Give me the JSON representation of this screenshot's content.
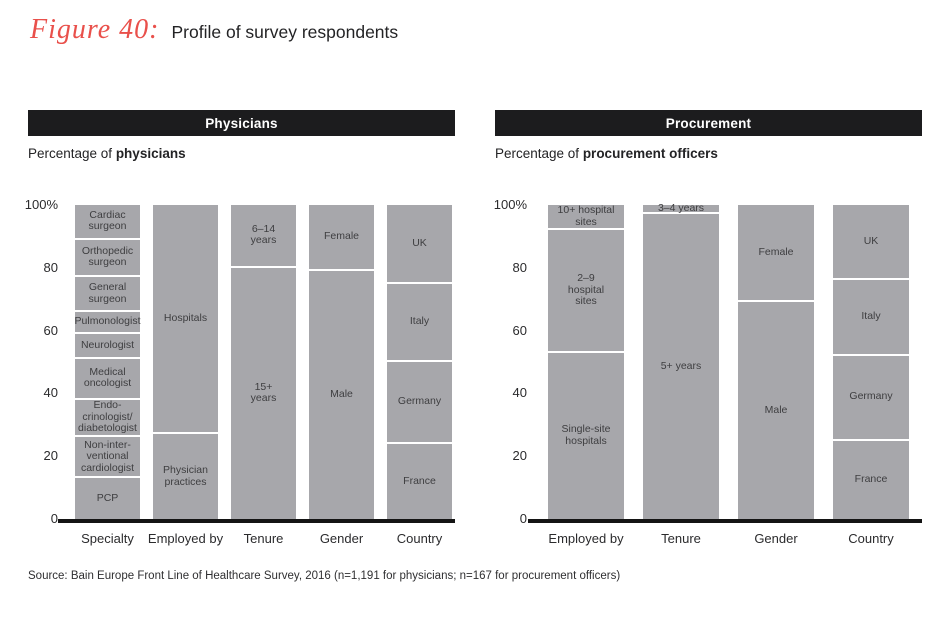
{
  "figure": {
    "label": "Figure 40:",
    "title": "Profile of survey respondents"
  },
  "colors": {
    "accent_red": "#e9504b",
    "bar_gray": "#a7a7ab",
    "header_bg": "#1c1c1e",
    "baseline_black": "#141414"
  },
  "source": "Source: Bain Europe Front Line of Healthcare Survey, 2016 (n=1,191 for physicians; n=167 for procurement officers)",
  "chart_data": [
    {
      "type": "bar",
      "stacked": true,
      "panel_title": "Physicians",
      "subtitle": {
        "prefix": "Percentage of ",
        "bold": "physicians"
      },
      "ylim": [
        0,
        100
      ],
      "grid": false,
      "legend": "none",
      "segments_order": "bottom-to-top",
      "yticks": [
        {
          "value": 100,
          "label": "100%"
        },
        {
          "value": 80,
          "label": "80"
        },
        {
          "value": 60,
          "label": "60"
        },
        {
          "value": 40,
          "label": "40"
        },
        {
          "value": 20,
          "label": "20"
        },
        {
          "value": 0,
          "label": "0"
        }
      ],
      "categories": [
        "Specialty",
        "Employed by",
        "Tenure",
        "Gender",
        "Country"
      ],
      "bars": [
        {
          "category": "Specialty",
          "segments": [
            {
              "label": "PCP",
              "value": 13
            },
            {
              "label": "Non-inter-\nventional\ncardiologist",
              "value": 13
            },
            {
              "label": "Endo-\ncrinologist/\ndiabetologist",
              "value": 12
            },
            {
              "label": "Medical\noncologist",
              "value": 13
            },
            {
              "label": "Neurologist",
              "value": 8
            },
            {
              "label": "Pulmonologist",
              "value": 7
            },
            {
              "label": "General\nsurgeon",
              "value": 11
            },
            {
              "label": "Orthopedic\nsurgeon",
              "value": 12
            },
            {
              "label": "Cardiac\nsurgeon",
              "value": 11
            }
          ]
        },
        {
          "category": "Employed by",
          "segments": [
            {
              "label": "Physician\npractices",
              "value": 27
            },
            {
              "label": "Hospitals",
              "value": 73
            }
          ]
        },
        {
          "category": "Tenure",
          "segments": [
            {
              "label": "15+\nyears",
              "value": 80
            },
            {
              "label": "6–14\nyears",
              "value": 20
            }
          ]
        },
        {
          "category": "Gender",
          "segments": [
            {
              "label": "Male",
              "value": 79
            },
            {
              "label": "Female",
              "value": 21
            }
          ]
        },
        {
          "category": "Country",
          "segments": [
            {
              "label": "France",
              "value": 24
            },
            {
              "label": "Germany",
              "value": 26
            },
            {
              "label": "Italy",
              "value": 25
            },
            {
              "label": "UK",
              "value": 25
            }
          ]
        }
      ]
    },
    {
      "type": "bar",
      "stacked": true,
      "panel_title": "Procurement",
      "subtitle": {
        "prefix": "Percentage of ",
        "bold": "procurement officers"
      },
      "ylim": [
        0,
        100
      ],
      "grid": false,
      "legend": "none",
      "segments_order": "bottom-to-top",
      "yticks": [
        {
          "value": 100,
          "label": "100%"
        },
        {
          "value": 80,
          "label": "80"
        },
        {
          "value": 60,
          "label": "60"
        },
        {
          "value": 40,
          "label": "40"
        },
        {
          "value": 20,
          "label": "20"
        },
        {
          "value": 0,
          "label": "0"
        }
      ],
      "categories": [
        "Employed by",
        "Tenure",
        "Gender",
        "Country"
      ],
      "bars": [
        {
          "category": "Employed by",
          "segments": [
            {
              "label": "Single-site\nhospitals",
              "value": 53
            },
            {
              "label": "2–9\nhospital\nsites",
              "value": 39
            },
            {
              "label": "10+ hospital\nsites",
              "value": 8
            }
          ]
        },
        {
          "category": "Tenure",
          "segments": [
            {
              "label": "5+ years",
              "value": 97
            },
            {
              "label": "3–4 years",
              "value": 3
            }
          ]
        },
        {
          "category": "Gender",
          "segments": [
            {
              "label": "Male",
              "value": 69
            },
            {
              "label": "Female",
              "value": 31
            }
          ]
        },
        {
          "category": "Country",
          "segments": [
            {
              "label": "France",
              "value": 25
            },
            {
              "label": "Germany",
              "value": 27
            },
            {
              "label": "Italy",
              "value": 24
            },
            {
              "label": "UK",
              "value": 24
            }
          ]
        }
      ]
    }
  ]
}
